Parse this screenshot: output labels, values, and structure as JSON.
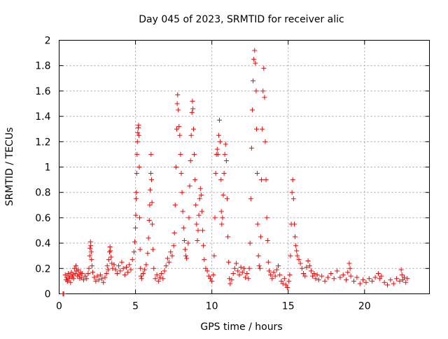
{
  "chart_data": {
    "type": "scatter",
    "title": "Day 045 of 2023, SRMTID for receiver alic",
    "xlabel": "GPS time / hours",
    "ylabel": "SRMTID / TECUs",
    "xlim": [
      0,
      24.25
    ],
    "ylim": [
      0,
      2
    ],
    "xticks": [
      0,
      5,
      10,
      15,
      20
    ],
    "xtick_labels": [
      "0",
      "5",
      "10",
      "15",
      "20"
    ],
    "yticks": [
      0,
      0.2,
      0.4,
      0.6,
      0.8,
      1,
      1.2,
      1.4,
      1.6,
      1.8,
      2
    ],
    "ytick_labels": [
      "0",
      "0.2",
      "0.4",
      "0.6",
      "0.8",
      "1",
      "1.2",
      "1.4",
      "1.6",
      "1.8",
      "2"
    ],
    "grid": true,
    "marker": "+",
    "color": "#ff0000",
    "series": [
      {
        "name": "SRMTID",
        "points": [
          [
            0.25,
            0.0
          ],
          [
            0.3,
            0.0
          ],
          [
            0.4,
            0.15
          ],
          [
            0.45,
            0.11
          ],
          [
            0.5,
            0.13
          ],
          [
            0.55,
            0.1
          ],
          [
            0.6,
            0.16
          ],
          [
            0.65,
            0.12
          ],
          [
            0.7,
            0.14
          ],
          [
            0.75,
            0.09
          ],
          [
            0.8,
            0.17
          ],
          [
            0.85,
            0.13
          ],
          [
            0.9,
            0.15
          ],
          [
            0.95,
            0.12
          ],
          [
            1.0,
            0.2
          ],
          [
            1.05,
            0.16
          ],
          [
            1.1,
            0.22
          ],
          [
            1.15,
            0.18
          ],
          [
            1.2,
            0.14
          ],
          [
            1.25,
            0.19
          ],
          [
            1.3,
            0.15
          ],
          [
            1.35,
            0.12
          ],
          [
            1.4,
            0.17
          ],
          [
            1.45,
            0.13
          ],
          [
            1.5,
            0.16
          ],
          [
            1.6,
            0.11
          ],
          [
            1.7,
            0.14
          ],
          [
            1.8,
            0.12
          ],
          [
            1.9,
            0.16
          ],
          [
            1.95,
            0.2
          ],
          [
            2.0,
            0.3
          ],
          [
            2.02,
            0.36
          ],
          [
            2.05,
            0.41
          ],
          [
            2.07,
            0.38
          ],
          [
            2.1,
            0.33
          ],
          [
            2.12,
            0.27
          ],
          [
            2.15,
            0.22
          ],
          [
            2.2,
            0.17
          ],
          [
            2.3,
            0.13
          ],
          [
            2.4,
            0.1
          ],
          [
            2.5,
            0.14
          ],
          [
            2.6,
            0.11
          ],
          [
            2.7,
            0.15
          ],
          [
            2.8,
            0.12
          ],
          [
            2.9,
            0.09
          ],
          [
            3.0,
            0.13
          ],
          [
            3.1,
            0.16
          ],
          [
            3.15,
            0.22
          ],
          [
            3.2,
            0.19
          ],
          [
            3.25,
            0.27
          ],
          [
            3.3,
            0.33
          ],
          [
            3.33,
            0.37
          ],
          [
            3.36,
            0.34
          ],
          [
            3.4,
            0.29
          ],
          [
            3.45,
            0.24
          ],
          [
            3.5,
            0.2
          ],
          [
            3.6,
            0.23
          ],
          [
            3.7,
            0.19
          ],
          [
            3.8,
            0.16
          ],
          [
            3.9,
            0.22
          ],
          [
            4.0,
            0.18
          ],
          [
            4.1,
            0.25
          ],
          [
            4.2,
            0.2
          ],
          [
            4.3,
            0.15
          ],
          [
            4.4,
            0.21
          ],
          [
            4.5,
            0.17
          ],
          [
            4.6,
            0.23
          ],
          [
            4.7,
            0.19
          ],
          [
            4.8,
            0.27
          ],
          [
            4.9,
            0.33
          ],
          [
            4.95,
            0.41
          ],
          [
            5.0,
            0.52
          ],
          [
            5.02,
            0.62
          ],
          [
            5.04,
            0.75
          ],
          [
            5.06,
            0.8
          ],
          [
            5.08,
            0.95
          ],
          [
            5.1,
            1.1
          ],
          [
            5.12,
            1.2
          ],
          [
            5.15,
            1.27
          ],
          [
            5.18,
            1.31
          ],
          [
            5.2,
            1.33
          ],
          [
            5.22,
            1.25
          ],
          [
            5.25,
            1.0
          ],
          [
            5.27,
            0.6
          ],
          [
            5.3,
            0.35
          ],
          [
            5.33,
            0.2
          ],
          [
            5.36,
            0.14
          ],
          [
            5.4,
            0.12
          ],
          [
            5.5,
            0.16
          ],
          [
            5.6,
            0.19
          ],
          [
            5.7,
            0.23
          ],
          [
            5.8,
            0.32
          ],
          [
            5.85,
            0.44
          ],
          [
            5.9,
            0.58
          ],
          [
            5.93,
            0.7
          ],
          [
            5.96,
            0.82
          ],
          [
            6.0,
            0.95
          ],
          [
            6.02,
            1.1
          ],
          [
            6.05,
            0.9
          ],
          [
            6.08,
            0.72
          ],
          [
            6.1,
            0.55
          ],
          [
            6.15,
            0.35
          ],
          [
            6.2,
            0.2
          ],
          [
            6.3,
            0.12
          ],
          [
            6.4,
            0.15
          ],
          [
            6.5,
            0.1
          ],
          [
            6.6,
            0.13
          ],
          [
            6.7,
            0.16
          ],
          [
            6.8,
            0.12
          ],
          [
            6.9,
            0.18
          ],
          [
            7.0,
            0.22
          ],
          [
            7.1,
            0.28
          ],
          [
            7.2,
            0.25
          ],
          [
            7.3,
            0.33
          ],
          [
            7.4,
            0.3
          ],
          [
            7.5,
            0.38
          ],
          [
            7.55,
            0.48
          ],
          [
            7.6,
            0.7
          ],
          [
            7.65,
            1.0
          ],
          [
            7.7,
            1.3
          ],
          [
            7.73,
            1.5
          ],
          [
            7.76,
            1.57
          ],
          [
            7.8,
            1.45
          ],
          [
            7.85,
            1.32
          ],
          [
            7.9,
            1.25
          ],
          [
            7.95,
            1.1
          ],
          [
            8.0,
            0.95
          ],
          [
            8.05,
            0.8
          ],
          [
            8.1,
            0.65
          ],
          [
            8.15,
            0.52
          ],
          [
            8.2,
            0.42
          ],
          [
            8.25,
            0.35
          ],
          [
            8.3,
            0.3
          ],
          [
            8.35,
            0.28
          ],
          [
            8.45,
            0.4
          ],
          [
            8.5,
            0.6
          ],
          [
            8.55,
            0.85
          ],
          [
            8.6,
            1.05
          ],
          [
            8.65,
            1.25
          ],
          [
            8.7,
            1.43
          ],
          [
            8.73,
            1.52
          ],
          [
            8.76,
            1.46
          ],
          [
            8.8,
            1.3
          ],
          [
            8.85,
            1.1
          ],
          [
            8.9,
            0.9
          ],
          [
            8.95,
            0.7
          ],
          [
            9.0,
            0.55
          ],
          [
            9.05,
            0.42
          ],
          [
            9.1,
            0.5
          ],
          [
            9.15,
            0.62
          ],
          [
            9.2,
            0.75
          ],
          [
            9.25,
            0.83
          ],
          [
            9.3,
            0.78
          ],
          [
            9.35,
            0.65
          ],
          [
            9.4,
            0.5
          ],
          [
            9.45,
            0.38
          ],
          [
            9.5,
            0.27
          ],
          [
            9.6,
            0.2
          ],
          [
            9.7,
            0.18
          ],
          [
            9.8,
            0.14
          ],
          [
            9.9,
            0.12
          ],
          [
            10.0,
            0.1
          ],
          [
            10.1,
            0.15
          ],
          [
            10.15,
            0.3
          ],
          [
            10.2,
            0.6
          ],
          [
            10.25,
            0.95
          ],
          [
            10.3,
            1.1
          ],
          [
            10.35,
            1.14
          ],
          [
            10.4,
            1.1
          ],
          [
            10.45,
            1.25
          ],
          [
            10.5,
            1.37
          ],
          [
            10.55,
            1.2
          ],
          [
            10.6,
            0.9
          ],
          [
            10.62,
            0.65
          ],
          [
            10.65,
            0.55
          ],
          [
            10.7,
            0.6
          ],
          [
            10.75,
            0.78
          ],
          [
            10.8,
            0.95
          ],
          [
            10.85,
            1.1
          ],
          [
            10.9,
            1.18
          ],
          [
            10.95,
            1.05
          ],
          [
            11.0,
            0.75
          ],
          [
            11.05,
            0.45
          ],
          [
            11.1,
            0.25
          ],
          [
            11.15,
            0.12
          ],
          [
            11.2,
            0.08
          ],
          [
            11.3,
            0.11
          ],
          [
            11.4,
            0.16
          ],
          [
            11.5,
            0.2
          ],
          [
            11.6,
            0.24
          ],
          [
            11.7,
            0.18
          ],
          [
            11.8,
            0.15
          ],
          [
            11.9,
            0.21
          ],
          [
            12.0,
            0.17
          ],
          [
            12.1,
            0.2
          ],
          [
            12.2,
            0.13
          ],
          [
            12.3,
            0.16
          ],
          [
            12.4,
            0.12
          ],
          [
            12.45,
            0.2
          ],
          [
            12.5,
            0.4
          ],
          [
            12.55,
            0.75
          ],
          [
            12.6,
            1.15
          ],
          [
            12.65,
            1.45
          ],
          [
            12.7,
            1.68
          ],
          [
            12.75,
            1.85
          ],
          [
            12.8,
            1.92
          ],
          [
            12.85,
            1.82
          ],
          [
            12.9,
            1.6
          ],
          [
            12.93,
            1.3
          ],
          [
            12.97,
            0.95
          ],
          [
            13.0,
            0.55
          ],
          [
            13.05,
            0.3
          ],
          [
            13.1,
            0.22
          ],
          [
            13.15,
            0.2
          ],
          [
            13.2,
            0.45
          ],
          [
            13.25,
            0.9
          ],
          [
            13.3,
            1.3
          ],
          [
            13.35,
            1.6
          ],
          [
            13.4,
            1.78
          ],
          [
            13.45,
            1.55
          ],
          [
            13.5,
            1.2
          ],
          [
            13.55,
            0.9
          ],
          [
            13.6,
            0.6
          ],
          [
            13.65,
            0.42
          ],
          [
            13.7,
            0.25
          ],
          [
            13.75,
            0.18
          ],
          [
            13.85,
            0.15
          ],
          [
            13.95,
            0.12
          ],
          [
            14.05,
            0.17
          ],
          [
            14.15,
            0.14
          ],
          [
            14.25,
            0.19
          ],
          [
            14.35,
            0.22
          ],
          [
            14.45,
            0.15
          ],
          [
            14.55,
            0.1
          ],
          [
            14.65,
            0.08
          ],
          [
            14.75,
            0.12
          ],
          [
            14.85,
            0.07
          ],
          [
            14.95,
            0.05
          ],
          [
            15.05,
            0.1
          ],
          [
            15.1,
            0.15
          ],
          [
            15.15,
            0.3
          ],
          [
            15.2,
            0.55
          ],
          [
            15.25,
            0.8
          ],
          [
            15.3,
            0.9
          ],
          [
            15.35,
            0.75
          ],
          [
            15.4,
            0.55
          ],
          [
            15.45,
            0.45
          ],
          [
            15.5,
            0.38
          ],
          [
            15.55,
            0.34
          ],
          [
            15.6,
            0.3
          ],
          [
            15.7,
            0.27
          ],
          [
            15.8,
            0.24
          ],
          [
            15.9,
            0.2
          ],
          [
            16.0,
            0.16
          ],
          [
            16.1,
            0.14
          ],
          [
            16.2,
            0.21
          ],
          [
            16.3,
            0.26
          ],
          [
            16.4,
            0.22
          ],
          [
            16.5,
            0.18
          ],
          [
            16.6,
            0.14
          ],
          [
            16.7,
            0.16
          ],
          [
            16.8,
            0.12
          ],
          [
            16.9,
            0.15
          ],
          [
            17.0,
            0.11
          ],
          [
            17.2,
            0.14
          ],
          [
            17.4,
            0.1
          ],
          [
            17.6,
            0.13
          ],
          [
            17.8,
            0.16
          ],
          [
            18.0,
            0.12
          ],
          [
            18.2,
            0.18
          ],
          [
            18.4,
            0.13
          ],
          [
            18.6,
            0.15
          ],
          [
            18.8,
            0.11
          ],
          [
            18.9,
            0.17
          ],
          [
            19.0,
            0.24
          ],
          [
            19.05,
            0.2
          ],
          [
            19.1,
            0.14
          ],
          [
            19.3,
            0.1
          ],
          [
            19.5,
            0.13
          ],
          [
            19.7,
            0.08
          ],
          [
            19.9,
            0.11
          ],
          [
            20.1,
            0.09
          ],
          [
            20.3,
            0.12
          ],
          [
            20.5,
            0.1
          ],
          [
            20.7,
            0.13
          ],
          [
            20.9,
            0.16
          ],
          [
            21.0,
            0.12
          ],
          [
            21.1,
            0.14
          ],
          [
            21.3,
            0.09
          ],
          [
            21.5,
            0.07
          ],
          [
            21.7,
            0.11
          ],
          [
            21.9,
            0.08
          ],
          [
            22.1,
            0.12
          ],
          [
            22.3,
            0.1
          ],
          [
            22.4,
            0.19
          ],
          [
            22.45,
            0.15
          ],
          [
            22.5,
            0.11
          ],
          [
            22.6,
            0.13
          ],
          [
            22.7,
            0.09
          ],
          [
            22.8,
            0.12
          ]
        ]
      }
    ]
  }
}
